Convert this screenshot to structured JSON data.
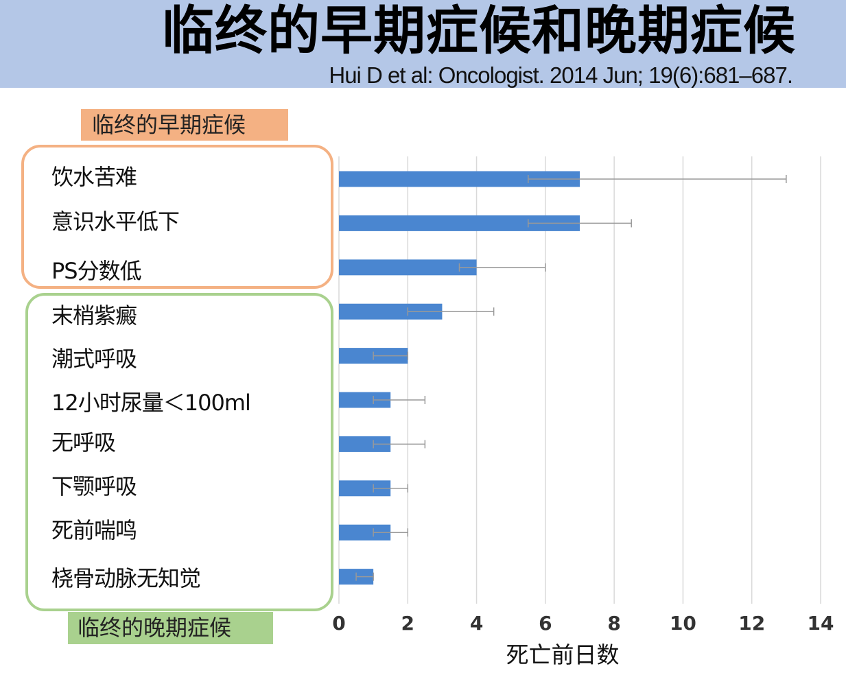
{
  "header": {
    "title": "临终的早期症候和晚期症候",
    "citation": "Hui D et al: Oncologist. 2014 Jun; 19(6):681–687."
  },
  "groups": {
    "early_label": "临终的早期症候",
    "late_label": "临终的晚期症候"
  },
  "colors": {
    "banner": "#b4c7e7",
    "early": "#f4b183",
    "late": "#a9d18e",
    "bar": "#4a86d0",
    "error_bar": "#999999",
    "grid": "#d9d9d9"
  },
  "chart_data": {
    "type": "bar",
    "orientation": "horizontal",
    "categories": [
      "饮水苦难",
      "意识水平低下",
      "PS分数低",
      "末梢紫癜",
      "潮式呼吸",
      "12小时尿量＜100ml",
      "无呼吸",
      "下颚呼吸",
      "死前喘鸣",
      "桡骨动脉无知觉"
    ],
    "values": [
      7,
      7,
      4,
      3,
      2,
      1.5,
      1.5,
      1.5,
      1.5,
      1
    ],
    "error_low": [
      5.5,
      5.5,
      3.5,
      2,
      1,
      1,
      1,
      1,
      1,
      0.5
    ],
    "error_high": [
      13,
      8.5,
      6,
      4.5,
      2,
      2.5,
      2.5,
      2,
      2,
      1
    ],
    "xlabel": "死亡前日数",
    "xlim": [
      0,
      14
    ],
    "xticks": [
      0,
      2,
      4,
      6,
      8,
      10,
      12,
      14
    ],
    "grid": true
  }
}
